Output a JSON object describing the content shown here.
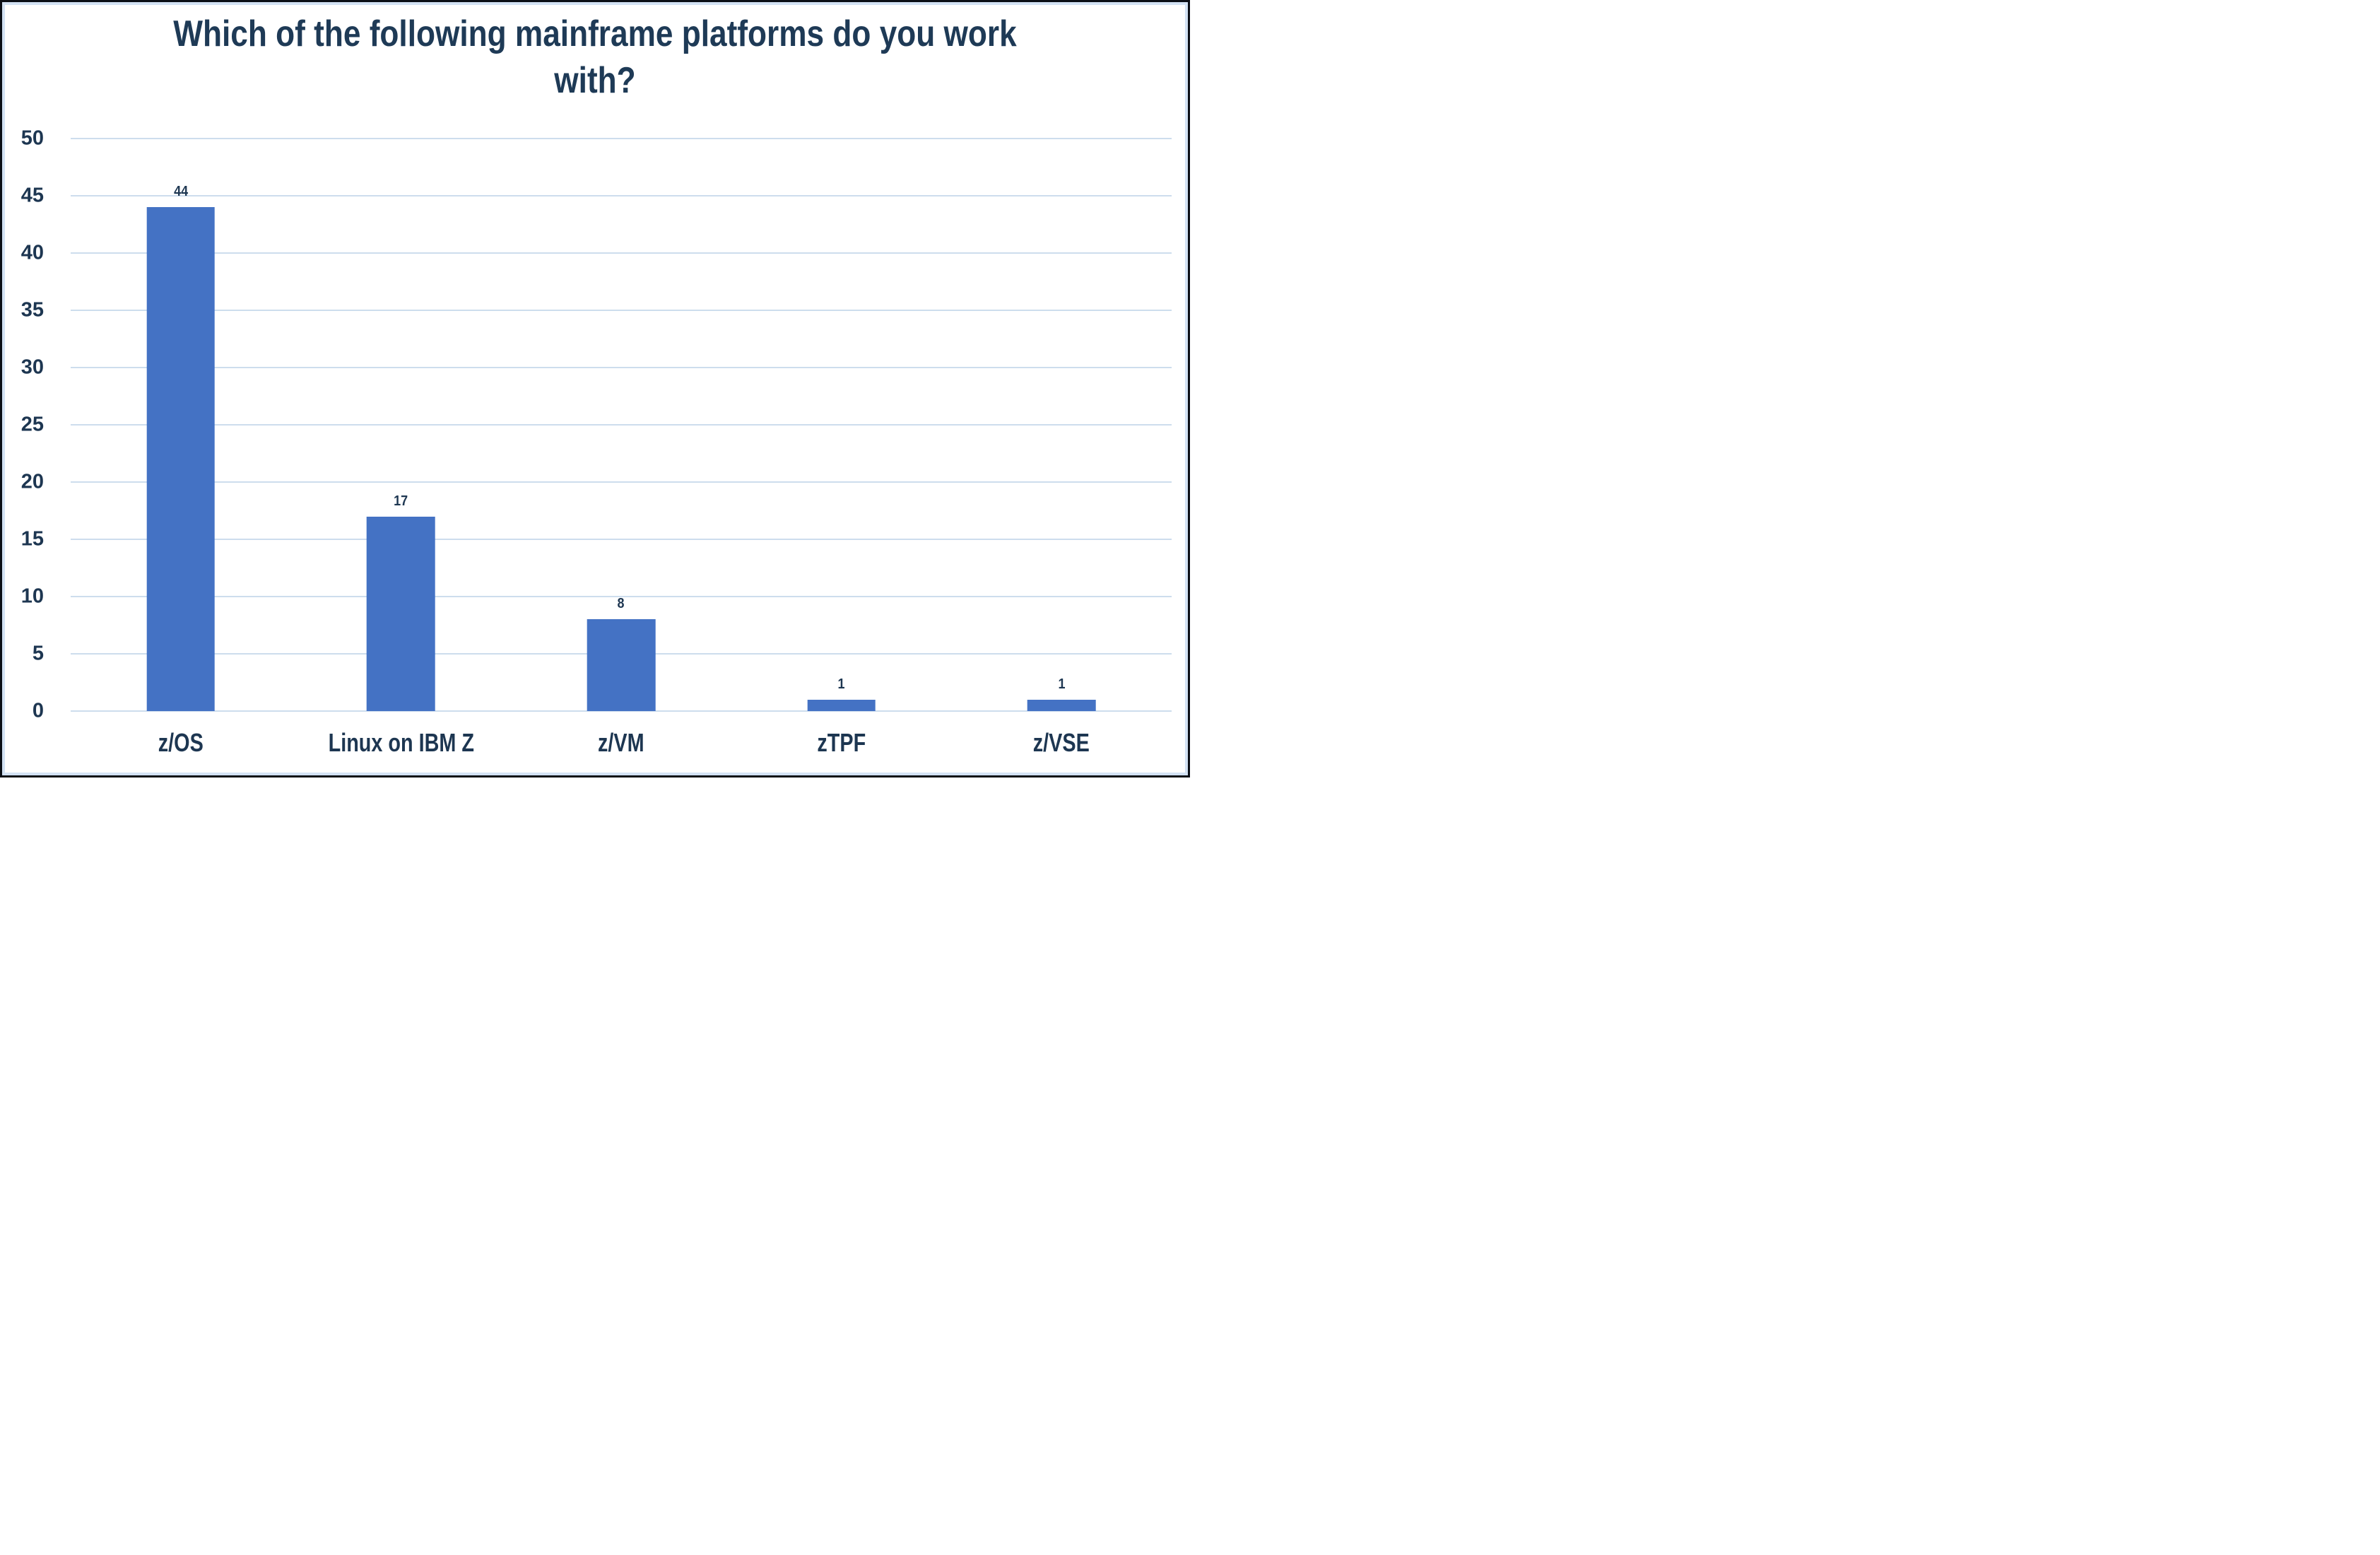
{
  "title_lines": [
    "Which of the following mainframe platforms do you work",
    "with?"
  ],
  "colors": {
    "bar": "#4472c4",
    "gridline": "#cddded",
    "text": "#1d3651",
    "text_title": "#1e3a56",
    "background": "#ffffff",
    "border_outer": "#0b0f16",
    "border_inner": "#d3e2f4"
  },
  "chart_data": {
    "type": "bar",
    "title": "Which of the following mainframe platforms do you work with?",
    "categories": [
      "z/OS",
      "Linux on IBM Z",
      "z/VM",
      "zTPF",
      "z/VSE"
    ],
    "values": [
      44,
      17,
      8,
      1,
      1
    ],
    "bar_value_labels": [
      "44",
      "17",
      "8",
      "1",
      "1"
    ],
    "xlabel": "",
    "ylabel": "",
    "ylim": [
      0,
      50
    ],
    "ytick_step": 5,
    "ytick_labels": [
      "0",
      "5",
      "10",
      "15",
      "20",
      "25",
      "30",
      "35",
      "40",
      "45",
      "50"
    ],
    "grid": "horizontal",
    "legend_position": "none"
  }
}
